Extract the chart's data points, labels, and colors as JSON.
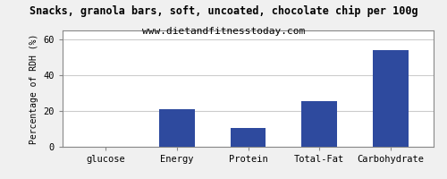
{
  "title": "Snacks, granola bars, soft, uncoated, chocolate chip per 100g",
  "subtitle": "www.dietandfitnesstoday.com",
  "categories": [
    "glucose",
    "Energy",
    "Protein",
    "Total-Fat",
    "Carbohydrate"
  ],
  "values": [
    0,
    21,
    10.5,
    25.5,
    54
  ],
  "bar_color": "#2e4a9e",
  "ylabel": "Percentage of RDH (%)",
  "ylim": [
    0,
    65
  ],
  "yticks": [
    0,
    20,
    40,
    60
  ],
  "background_color": "#f0f0f0",
  "plot_bg_color": "#ffffff",
  "title_fontsize": 8.5,
  "subtitle_fontsize": 8,
  "ylabel_fontsize": 7,
  "tick_fontsize": 7.5,
  "grid_color": "#cccccc",
  "border_color": "#888888",
  "bar_width": 0.5
}
